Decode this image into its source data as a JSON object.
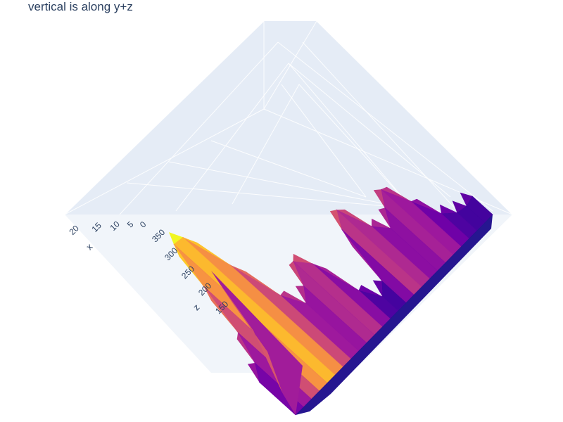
{
  "title": "vertical is along y+z",
  "colors": {
    "floor": "#e5ecf6",
    "grid": "#ffffff",
    "text": "#2a3f5f",
    "colorscale": [
      "#0d0887",
      "#46039f",
      "#7201a8",
      "#9c179e",
      "#bd3786",
      "#d8576b",
      "#ed7953",
      "#fb9f3a",
      "#fdca26",
      "#f0f921"
    ]
  },
  "chart_data": {
    "type": "surface",
    "title": "vertical is along y+z",
    "colorscale": "Plasma",
    "x_axis": {
      "label": "x",
      "ticks": [
        "0",
        "5",
        "10",
        "15",
        "20"
      ],
      "range": [
        0,
        24
      ]
    },
    "z_axis": {
      "label": "z",
      "ticks": [
        "150",
        "200",
        "250",
        "300",
        "350"
      ],
      "range": [
        100,
        380
      ]
    },
    "grid": true,
    "camera_up": "y+z",
    "surface_peaks": [
      {
        "x": 0,
        "z": 360
      },
      {
        "x": 22,
        "z": 140
      },
      {
        "x": 14,
        "z": 280
      }
    ]
  }
}
